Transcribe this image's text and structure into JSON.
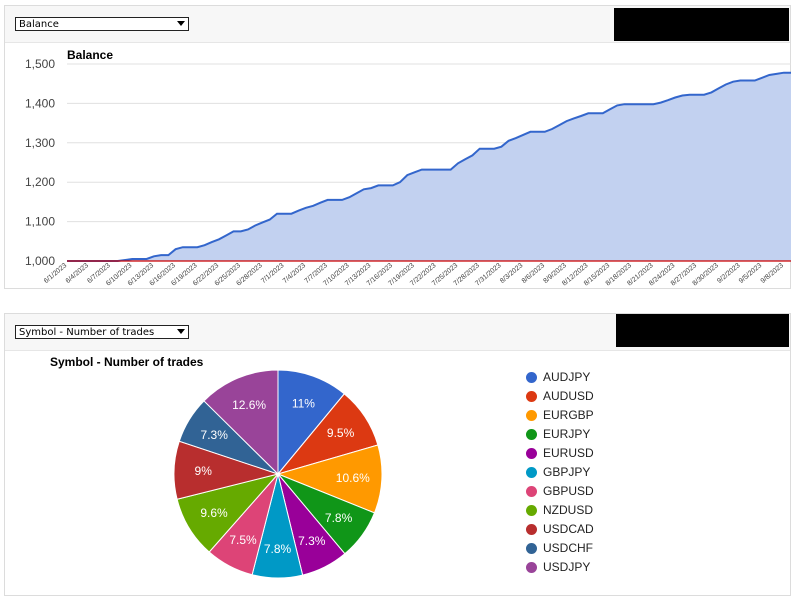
{
  "balance_panel": {
    "selector_value": "Balance"
  },
  "trades_panel": {
    "selector_value": "Symbol - Number of trades"
  },
  "colors": {
    "line": "#3366cc",
    "area": "#c2d1f0",
    "baseline": "#cc0000"
  },
  "chart_data": [
    {
      "type": "area",
      "title": "Balance",
      "xlabel": "",
      "ylabel": "",
      "ylim": [
        1000,
        1500
      ],
      "y_ticks": [
        "1,000",
        "1,100",
        "1,200",
        "1,300",
        "1,400",
        "1,500"
      ],
      "x_tick_labels": [
        "6/1/2023",
        "6/4/2023",
        "6/7/2023",
        "6/10/2023",
        "6/13/2023",
        "6/16/2023",
        "6/19/2023",
        "6/22/2023",
        "6/25/2023",
        "6/28/2023",
        "7/1/2023",
        "7/4/2023",
        "7/7/2023",
        "7/10/2023",
        "7/13/2023",
        "7/16/2023",
        "7/19/2023",
        "7/22/2023",
        "7/25/2023",
        "7/28/2023",
        "7/31/2023",
        "8/3/2023",
        "8/6/2023",
        "8/9/2023",
        "8/12/2023",
        "8/15/2023",
        "8/18/2023",
        "8/21/2023",
        "8/24/2023",
        "8/27/2023",
        "8/30/2023",
        "9/2/2023",
        "9/5/2023",
        "9/8/2023"
      ],
      "grid": true,
      "legend": "none",
      "series": [
        {
          "x": [
            "6/1/2023",
            "6/8/2023",
            "6/10/2023",
            "6/12/2023",
            "6/13/2023",
            "6/14/2023",
            "6/15/2023",
            "6/16/2023",
            "6/17/2023",
            "6/18/2023",
            "6/19/2023",
            "6/20/2023",
            "6/21/2023",
            "6/22/2023",
            "6/23/2023",
            "6/24/2023",
            "6/25/2023",
            "6/26/2023",
            "6/27/2023",
            "6/28/2023",
            "6/29/2023",
            "6/30/2023",
            "7/1/2023",
            "7/2/2023",
            "7/3/2023",
            "7/4/2023",
            "7/5/2023",
            "7/6/2023",
            "7/7/2023",
            "7/8/2023",
            "7/9/2023",
            "7/10/2023",
            "7/11/2023",
            "7/12/2023",
            "7/13/2023",
            "7/14/2023",
            "7/15/2023",
            "7/16/2023",
            "7/17/2023",
            "7/18/2023",
            "7/19/2023",
            "7/20/2023",
            "7/21/2023",
            "7/22/2023",
            "7/23/2023",
            "7/24/2023",
            "7/25/2023",
            "7/26/2023",
            "7/27/2023",
            "7/28/2023",
            "7/29/2023",
            "7/30/2023",
            "7/31/2023",
            "8/1/2023",
            "8/2/2023",
            "8/3/2023",
            "8/4/2023",
            "8/5/2023",
            "8/6/2023",
            "8/7/2023",
            "8/8/2023",
            "8/9/2023",
            "8/10/2023",
            "8/11/2023",
            "8/12/2023",
            "8/13/2023",
            "8/14/2023",
            "8/15/2023",
            "8/16/2023",
            "8/17/2023",
            "8/18/2023",
            "8/19/2023",
            "8/20/2023",
            "8/21/2023",
            "8/22/2023",
            "8/23/2023",
            "8/24/2023",
            "8/25/2023",
            "8/26/2023",
            "8/27/2023",
            "8/28/2023",
            "8/29/2023",
            "8/30/2023",
            "8/31/2023",
            "9/1/2023",
            "9/2/2023",
            "9/3/2023",
            "9/4/2023",
            "9/5/2023",
            "9/6/2023",
            "9/7/2023",
            "9/8/2023",
            "9/9/2023"
          ],
          "values": [
            1000,
            1000,
            1005,
            1005,
            1012,
            1015,
            1015,
            1030,
            1035,
            1035,
            1035,
            1040,
            1048,
            1055,
            1065,
            1075,
            1075,
            1080,
            1090,
            1098,
            1105,
            1120,
            1120,
            1120,
            1128,
            1135,
            1140,
            1148,
            1155,
            1155,
            1155,
            1162,
            1172,
            1182,
            1185,
            1192,
            1192,
            1192,
            1200,
            1218,
            1225,
            1232,
            1232,
            1232,
            1232,
            1232,
            1248,
            1258,
            1268,
            1285,
            1285,
            1285,
            1290,
            1305,
            1312,
            1320,
            1328,
            1328,
            1328,
            1335,
            1345,
            1355,
            1362,
            1368,
            1375,
            1375,
            1375,
            1385,
            1395,
            1398,
            1398,
            1398,
            1398,
            1398,
            1402,
            1408,
            1415,
            1420,
            1422,
            1422,
            1422,
            1428,
            1438,
            1448,
            1455,
            1458,
            1458,
            1458,
            1465,
            1472,
            1475,
            1478,
            1478
          ]
        }
      ]
    },
    {
      "type": "pie",
      "title": "Symbol - Number of trades",
      "legend": "right",
      "categories": [
        "AUDJPY",
        "AUDUSD",
        "EURGBP",
        "EURJPY",
        "EURUSD",
        "GBPJPY",
        "GBPUSD",
        "NZDUSD",
        "USDCAD",
        "USDCHF",
        "USDJPY"
      ],
      "values": [
        11,
        9.5,
        10.6,
        7.8,
        7.3,
        7.8,
        7.5,
        9.6,
        9,
        7.3,
        12.6
      ],
      "labels": [
        "11%",
        "9.5%",
        "10.6%",
        "7.8%",
        "7.3%",
        "7.8%",
        "7.5%",
        "9.6%",
        "9%",
        "7.3%",
        "12.6%"
      ],
      "colors": [
        "#3366cc",
        "#dc3912",
        "#ff9900",
        "#109618",
        "#990099",
        "#0099c6",
        "#dd4477",
        "#66aa00",
        "#b82e2e",
        "#316395",
        "#994499"
      ]
    }
  ]
}
